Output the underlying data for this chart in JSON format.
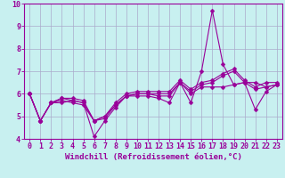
{
  "xlabel": "Windchill (Refroidissement éolien,°C)",
  "background_color": "#c8f0f0",
  "line_color": "#990099",
  "grid_color": "#aaaacc",
  "xlim": [
    -0.5,
    23.5
  ],
  "ylim": [
    4,
    10
  ],
  "xticks": [
    0,
    1,
    2,
    3,
    4,
    5,
    6,
    7,
    8,
    9,
    10,
    11,
    12,
    13,
    14,
    15,
    16,
    17,
    18,
    19,
    20,
    21,
    22,
    23
  ],
  "yticks": [
    4,
    5,
    6,
    7,
    8,
    9,
    10
  ],
  "line1": [
    6.0,
    4.8,
    5.6,
    5.6,
    5.7,
    5.6,
    4.1,
    4.8,
    5.4,
    5.9,
    5.9,
    5.9,
    5.8,
    5.6,
    6.5,
    5.6,
    7.0,
    9.7,
    7.3,
    6.4,
    6.5,
    5.3,
    6.1,
    6.4
  ],
  "line2": [
    6.0,
    4.8,
    5.6,
    5.8,
    5.7,
    5.6,
    4.8,
    5.0,
    5.5,
    5.9,
    6.0,
    6.0,
    5.9,
    5.9,
    6.5,
    6.0,
    6.3,
    6.3,
    6.3,
    6.4,
    6.5,
    6.5,
    6.3,
    6.4
  ],
  "line3": [
    6.0,
    4.8,
    5.6,
    5.7,
    5.6,
    5.5,
    4.8,
    4.9,
    5.5,
    5.9,
    6.0,
    6.0,
    6.0,
    6.0,
    6.5,
    6.1,
    6.4,
    6.5,
    6.8,
    7.0,
    6.5,
    6.2,
    6.3,
    6.4
  ],
  "line4": [
    6.0,
    4.8,
    5.6,
    5.8,
    5.8,
    5.7,
    4.8,
    5.0,
    5.6,
    6.0,
    6.1,
    6.1,
    6.1,
    6.1,
    6.6,
    6.2,
    6.5,
    6.6,
    6.9,
    7.1,
    6.6,
    6.3,
    6.5,
    6.5
  ],
  "marker_size": 2.5,
  "line_width": 0.8,
  "xlabel_fontsize": 6.5,
  "tick_fontsize": 6
}
